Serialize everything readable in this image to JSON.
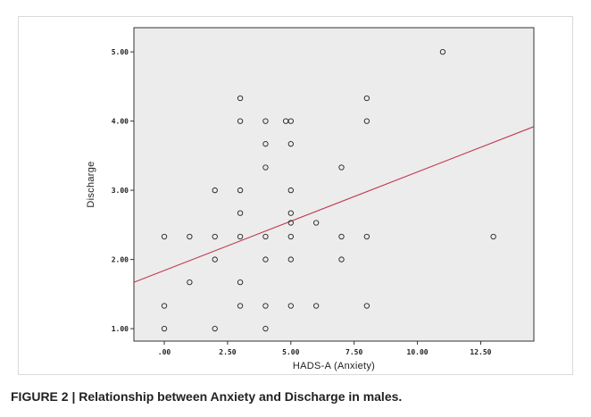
{
  "caption": "FIGURE 2 | Relationship between Anxiety and Discharge in males.",
  "chart_data": {
    "type": "scatter",
    "title": "",
    "xlabel": "HADS-A (Anxiety)",
    "ylabel": "Discharge",
    "xlim": [
      -1.2,
      14.6
    ],
    "ylim": [
      0.82,
      5.35
    ],
    "xticks": [
      0,
      2.5,
      5,
      7.5,
      10,
      12.5
    ],
    "xtick_labels": [
      ".00",
      "2.50",
      "5.00",
      "7.50",
      "10.00",
      "12.50"
    ],
    "yticks": [
      1,
      2,
      3,
      4,
      5
    ],
    "ytick_labels": [
      "1.00",
      "2.00",
      "3.00",
      "4.00",
      "5.00"
    ],
    "grid": false,
    "points": [
      [
        0,
        2.33
      ],
      [
        0,
        1.33
      ],
      [
        0,
        1.0
      ],
      [
        1,
        2.33
      ],
      [
        1,
        1.67
      ],
      [
        2,
        3.0
      ],
      [
        2,
        2.33
      ],
      [
        2,
        2.0
      ],
      [
        2,
        1.0
      ],
      [
        3,
        4.33
      ],
      [
        3,
        4.0
      ],
      [
        3,
        3.0
      ],
      [
        3,
        2.67
      ],
      [
        3,
        2.33
      ],
      [
        3,
        1.67
      ],
      [
        3,
        1.33
      ],
      [
        4,
        4.0
      ],
      [
        4,
        3.67
      ],
      [
        4,
        3.33
      ],
      [
        4,
        2.33
      ],
      [
        4,
        2.0
      ],
      [
        4,
        1.33
      ],
      [
        4,
        1.0
      ],
      [
        4.8,
        4.0
      ],
      [
        5,
        4.0
      ],
      [
        5,
        3.67
      ],
      [
        5,
        3.0
      ],
      [
        5,
        2.67
      ],
      [
        5,
        2.53
      ],
      [
        5,
        2.33
      ],
      [
        5,
        2.0
      ],
      [
        5,
        1.33
      ],
      [
        6,
        2.53
      ],
      [
        6,
        1.33
      ],
      [
        7,
        3.33
      ],
      [
        7,
        2.33
      ],
      [
        7,
        2.0
      ],
      [
        8,
        4.33
      ],
      [
        8,
        4.0
      ],
      [
        8,
        2.33
      ],
      [
        8,
        1.33
      ],
      [
        11,
        5.0
      ],
      [
        13,
        2.33
      ]
    ],
    "trendline": {
      "x": [
        -1.2,
        14.6
      ],
      "y": [
        1.67,
        3.92
      ]
    },
    "colors": {
      "plot_background": "#ececec",
      "point_stroke": "#222222",
      "trendline": "#c0394e"
    }
  }
}
